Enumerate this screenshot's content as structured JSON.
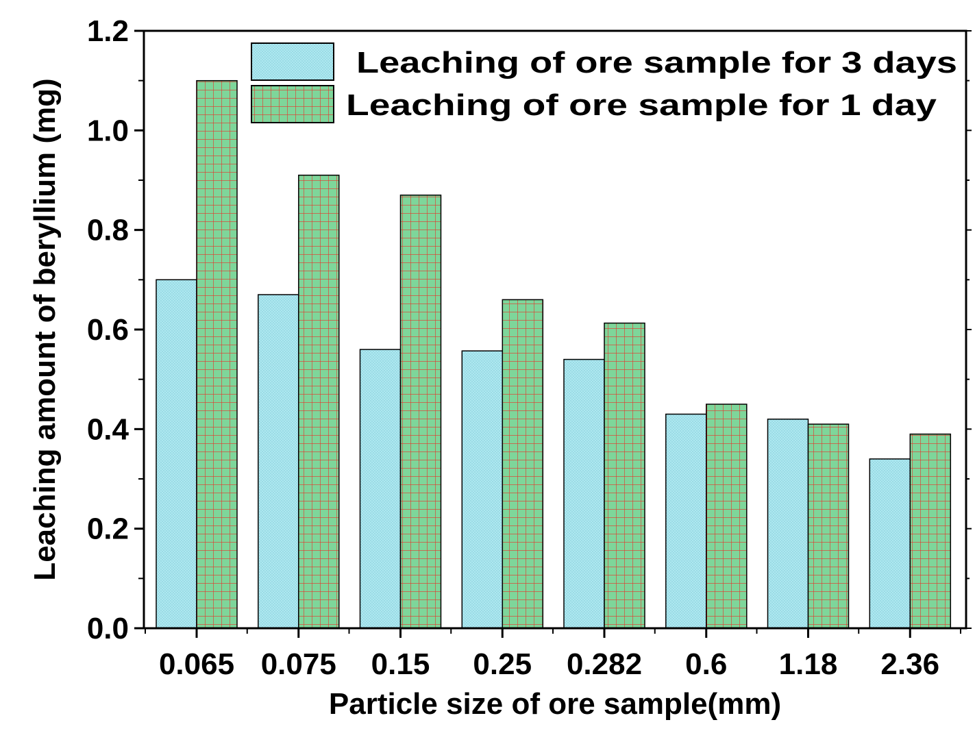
{
  "chart_data": {
    "type": "bar",
    "title": "",
    "xlabel": "Particle size of ore sample(mm)",
    "ylabel": "Leaching amount of beryllium (mg)",
    "categories": [
      "0.065",
      "0.075",
      "0.15",
      "0.25",
      "0.282",
      "0.6",
      "1.18",
      "2.36"
    ],
    "series": [
      {
        "name": "Leaching of ore sample for 3 days",
        "values": [
          0.7,
          0.67,
          0.56,
          0.557,
          0.54,
          0.43,
          0.42,
          0.34
        ],
        "fill": "#aee8f0",
        "pattern": "dots",
        "pattern_color": "#7fc9d6"
      },
      {
        "name": "Leaching  of ore sample for 1 day",
        "values": [
          1.1,
          0.91,
          0.87,
          0.66,
          0.613,
          0.45,
          0.41,
          0.39
        ],
        "fill": "#7ed69a",
        "pattern": "grid",
        "pattern_color": "#e8322a"
      }
    ],
    "ylim": [
      0,
      1.2
    ],
    "yticks": [
      "0.0",
      "0.2",
      "0.4",
      "0.6",
      "0.8",
      "1.0",
      "1.2"
    ],
    "grid": false,
    "legend_position": "top-right",
    "axis_color": "#000000"
  }
}
